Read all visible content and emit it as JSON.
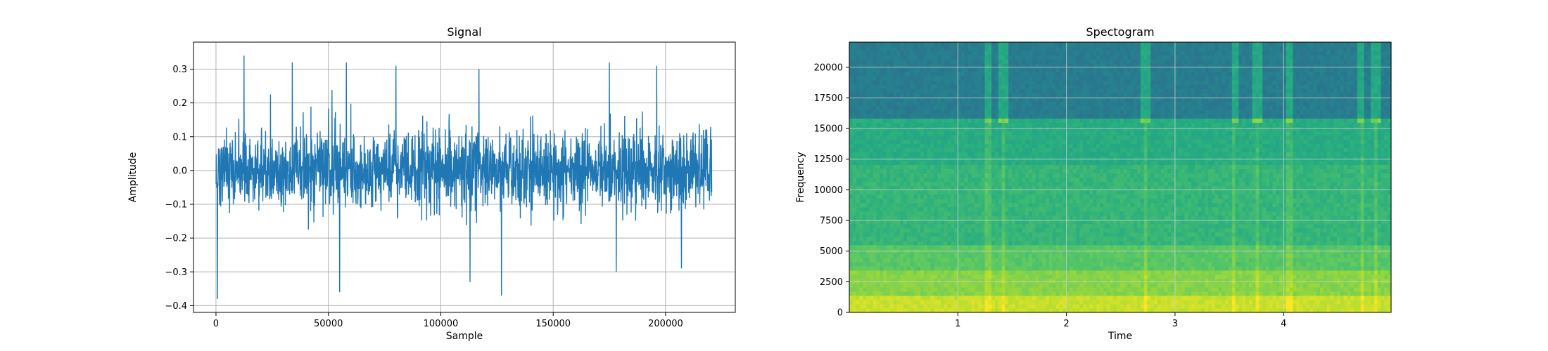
{
  "chart_data": [
    {
      "type": "line",
      "title": "Signal",
      "xlabel": "Sample",
      "ylabel": "Amplitude",
      "xlim": [
        -10000,
        231000
      ],
      "ylim": [
        -0.42,
        0.38
      ],
      "x_ticks": [
        0,
        50000,
        100000,
        150000,
        200000
      ],
      "x_tick_labels": [
        "0",
        "50000",
        "100000",
        "150000",
        "200000"
      ],
      "y_ticks": [
        -0.4,
        -0.3,
        -0.2,
        -0.1,
        0.0,
        0.1,
        0.2,
        0.3
      ],
      "y_tick_labels": [
        "−0.4",
        "−0.3",
        "−0.2",
        "−0.1",
        "0.0",
        "0.1",
        "0.2",
        "0.3"
      ],
      "grid": true,
      "series": [
        {
          "color": "#1f77b4",
          "x_range": [
            0,
            220500
          ],
          "typical_envelope": [
            -0.14,
            0.14
          ],
          "peaks": [
            {
              "x": 12500,
              "y": 0.34
            },
            {
              "x": 34000,
              "y": 0.32
            },
            {
              "x": 58000,
              "y": 0.32
            },
            {
              "x": 80000,
              "y": 0.31
            },
            {
              "x": 117000,
              "y": 0.3
            },
            {
              "x": 175000,
              "y": 0.32
            },
            {
              "x": 196000,
              "y": 0.31
            }
          ],
          "troughs": [
            {
              "x": 700,
              "y": -0.38
            },
            {
              "x": 55000,
              "y": -0.36
            },
            {
              "x": 113000,
              "y": -0.33
            },
            {
              "x": 127000,
              "y": -0.37
            },
            {
              "x": 178000,
              "y": -0.3
            },
            {
              "x": 207000,
              "y": -0.29
            }
          ]
        }
      ]
    },
    {
      "type": "heatmap",
      "title": "Spectogram",
      "xlabel": "Time",
      "ylabel": "Frequency",
      "xlim": [
        0.0,
        4.99
      ],
      "ylim": [
        0,
        22050
      ],
      "x_ticks": [
        1,
        2,
        3,
        4
      ],
      "x_tick_labels": [
        "1",
        "2",
        "3",
        "4"
      ],
      "y_ticks": [
        0,
        2500,
        5000,
        7500,
        10000,
        12500,
        15000,
        17500,
        20000
      ],
      "y_tick_labels": [
        "0",
        "2500",
        "5000",
        "7500",
        "10000",
        "12500",
        "15000",
        "17500",
        "20000"
      ],
      "grid": true,
      "colormap": "viridis",
      "bands": [
        {
          "freq_range": [
            0,
            1500
          ],
          "level": 0.92
        },
        {
          "freq_range": [
            1500,
            3500
          ],
          "level": 0.82
        },
        {
          "freq_range": [
            3500,
            5500
          ],
          "level": 0.74
        },
        {
          "freq_range": [
            5500,
            12000
          ],
          "level": 0.66
        },
        {
          "freq_range": [
            12000,
            16000
          ],
          "level": 0.62
        },
        {
          "freq_range": [
            16000,
            22050
          ],
          "level": 0.42
        }
      ],
      "transients_time": [
        1.28,
        1.42,
        2.73,
        3.55,
        3.76,
        4.05,
        4.72,
        4.85
      ]
    }
  ]
}
